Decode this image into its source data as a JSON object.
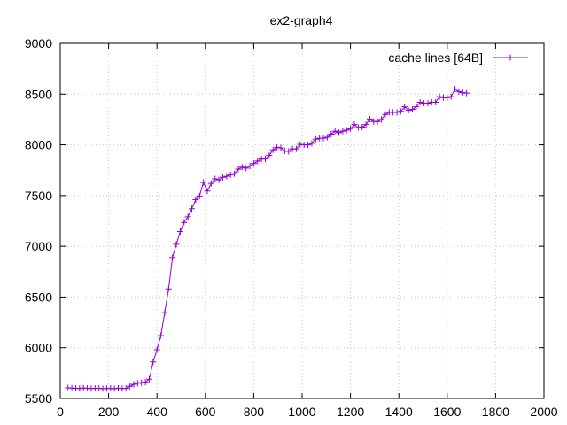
{
  "chart_data": {
    "type": "line",
    "title": "ex2-graph4",
    "xlabel": "",
    "ylabel": "",
    "xlim": [
      0,
      2000
    ],
    "ylim": [
      5500,
      9000
    ],
    "xticks": [
      0,
      200,
      400,
      600,
      800,
      1000,
      1200,
      1400,
      1600,
      1800,
      2000
    ],
    "yticks": [
      5500,
      6000,
      6500,
      7000,
      7500,
      8000,
      8500,
      9000
    ],
    "grid": true,
    "legend_position": "top-right",
    "series": [
      {
        "name": "cache lines [64B]",
        "color": "#9400d3",
        "marker": "plus",
        "points": [
          [
            32,
            5605
          ],
          [
            48,
            5603
          ],
          [
            64,
            5600
          ],
          [
            80,
            5598
          ],
          [
            96,
            5603
          ],
          [
            112,
            5600
          ],
          [
            128,
            5598
          ],
          [
            144,
            5600
          ],
          [
            160,
            5600
          ],
          [
            176,
            5597
          ],
          [
            192,
            5598
          ],
          [
            208,
            5600
          ],
          [
            224,
            5597
          ],
          [
            240,
            5600
          ],
          [
            256,
            5598
          ],
          [
            272,
            5600
          ],
          [
            288,
            5620
          ],
          [
            304,
            5640
          ],
          [
            320,
            5650
          ],
          [
            336,
            5655
          ],
          [
            352,
            5660
          ],
          [
            368,
            5690
          ],
          [
            384,
            5860
          ],
          [
            400,
            5980
          ],
          [
            416,
            6120
          ],
          [
            432,
            6345
          ],
          [
            448,
            6580
          ],
          [
            464,
            6890
          ],
          [
            480,
            7020
          ],
          [
            496,
            7145
          ],
          [
            512,
            7235
          ],
          [
            528,
            7290
          ],
          [
            544,
            7370
          ],
          [
            560,
            7460
          ],
          [
            576,
            7495
          ],
          [
            592,
            7630
          ],
          [
            608,
            7545
          ],
          [
            624,
            7620
          ],
          [
            640,
            7665
          ],
          [
            656,
            7655
          ],
          [
            672,
            7680
          ],
          [
            688,
            7690
          ],
          [
            704,
            7705
          ],
          [
            720,
            7715
          ],
          [
            736,
            7760
          ],
          [
            752,
            7780
          ],
          [
            768,
            7770
          ],
          [
            784,
            7790
          ],
          [
            800,
            7815
          ],
          [
            816,
            7840
          ],
          [
            832,
            7860
          ],
          [
            848,
            7860
          ],
          [
            864,
            7895
          ],
          [
            880,
            7950
          ],
          [
            896,
            7975
          ],
          [
            912,
            7970
          ],
          [
            928,
            7940
          ],
          [
            944,
            7935
          ],
          [
            960,
            7960
          ],
          [
            976,
            7960
          ],
          [
            992,
            8005
          ],
          [
            1008,
            8000
          ],
          [
            1024,
            8000
          ],
          [
            1040,
            8015
          ],
          [
            1056,
            8055
          ],
          [
            1072,
            8065
          ],
          [
            1088,
            8065
          ],
          [
            1104,
            8075
          ],
          [
            1120,
            8105
          ],
          [
            1136,
            8135
          ],
          [
            1152,
            8120
          ],
          [
            1168,
            8135
          ],
          [
            1184,
            8145
          ],
          [
            1200,
            8160
          ],
          [
            1216,
            8200
          ],
          [
            1232,
            8170
          ],
          [
            1248,
            8175
          ],
          [
            1264,
            8200
          ],
          [
            1280,
            8255
          ],
          [
            1296,
            8230
          ],
          [
            1312,
            8230
          ],
          [
            1328,
            8250
          ],
          [
            1344,
            8300
          ],
          [
            1360,
            8320
          ],
          [
            1376,
            8320
          ],
          [
            1392,
            8320
          ],
          [
            1408,
            8330
          ],
          [
            1424,
            8375
          ],
          [
            1440,
            8340
          ],
          [
            1456,
            8350
          ],
          [
            1472,
            8375
          ],
          [
            1488,
            8420
          ],
          [
            1504,
            8410
          ],
          [
            1520,
            8410
          ],
          [
            1536,
            8420
          ],
          [
            1552,
            8420
          ],
          [
            1568,
            8475
          ],
          [
            1584,
            8465
          ],
          [
            1600,
            8465
          ],
          [
            1616,
            8475
          ],
          [
            1632,
            8550
          ],
          [
            1648,
            8525
          ],
          [
            1664,
            8515
          ],
          [
            1680,
            8510
          ]
        ]
      }
    ]
  }
}
